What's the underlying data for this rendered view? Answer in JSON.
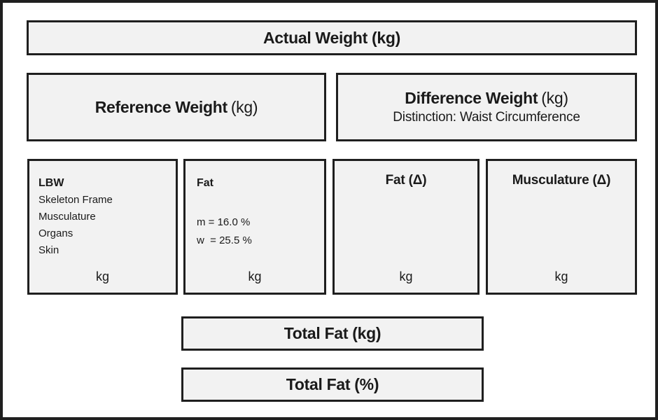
{
  "boxes": {
    "actual": {
      "label": "Actual Weight (kg)"
    },
    "reference": {
      "label_bold": "Reference Weight",
      "label_unit": "(kg)"
    },
    "difference": {
      "label_bold": "Difference Weight",
      "label_unit": "(kg)",
      "subtitle": "Distinction: Waist Circumference"
    },
    "lbw": {
      "title": "LBW",
      "items": [
        "Skeleton Frame",
        "Musculature",
        "Organs",
        "Skin"
      ],
      "unit": "kg"
    },
    "fat": {
      "title": "Fat",
      "lines": [
        "m = 16.0 %",
        "w  = 25.5 %"
      ],
      "unit": "kg"
    },
    "fat_delta": {
      "title": "Fat (Δ)",
      "unit": "kg"
    },
    "musculature_delta": {
      "title": "Musculature (Δ)",
      "unit": "kg"
    },
    "total_fat_kg": {
      "label": "Total Fat (kg)"
    },
    "total_fat_pct": {
      "label": "Total Fat (%)"
    }
  },
  "colors": {
    "box_fill": "#f2f2f2",
    "border": "#1f1f1f",
    "text": "#1a1a1a",
    "background": "#ffffff"
  }
}
